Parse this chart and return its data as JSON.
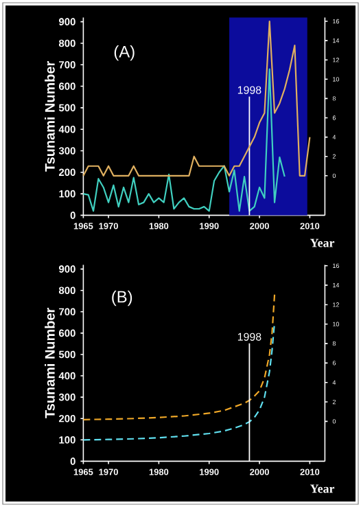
{
  "chart_data": [
    {
      "type": "line",
      "xlabel": "Year",
      "ylabel": "Tsunami Number",
      "xlim": [
        1965,
        2013
      ],
      "xticks": [
        1965,
        1970,
        1980,
        1990,
        2000,
        2010
      ],
      "ylim": [
        0,
        920
      ],
      "yticks": [
        0,
        100,
        200,
        300,
        400,
        500,
        600,
        700,
        800,
        900
      ],
      "y2lim": [
        -4.1,
        16.4
      ],
      "y2ticks": [
        0,
        2,
        4,
        6,
        8,
        10,
        12,
        14,
        16
      ],
      "annotations": [
        "(A)"
      ],
      "bands": [
        {
          "axis": "x",
          "from": 1994,
          "to": 2009.5,
          "color": "#0c0c9c"
        }
      ],
      "ref_lines": [
        {
          "axis": "x",
          "value": 1998,
          "label": "1998",
          "color": "#ffffff"
        }
      ],
      "series": [
        {
          "color": "#40d0c0",
          "x": [
            1965,
            1966,
            1967,
            1968,
            1969,
            1970,
            1971,
            1972,
            1973,
            1974,
            1975,
            1976,
            1977,
            1978,
            1979,
            1980,
            1981,
            1982,
            1983,
            1984,
            1985,
            1986,
            1987,
            1988,
            1989,
            1990,
            1991,
            1992,
            1993,
            1994,
            1995,
            1996,
            1997,
            1998,
            1999,
            2000,
            2001,
            2002,
            2003,
            2004,
            2005
          ],
          "values": [
            100,
            95,
            20,
            170,
            130,
            60,
            140,
            40,
            130,
            60,
            175,
            50,
            60,
            100,
            60,
            80,
            60,
            190,
            30,
            60,
            80,
            40,
            30,
            30,
            40,
            20,
            160,
            200,
            230,
            110,
            210,
            20,
            180,
            20,
            40,
            130,
            80,
            680,
            60,
            270,
            180
          ]
        },
        {
          "color": "#e0b060",
          "axis": "y2",
          "x": [
            1965,
            1966,
            1967,
            1968,
            1969,
            1970,
            1971,
            1972,
            1973,
            1974,
            1975,
            1976,
            1977,
            1978,
            1979,
            1980,
            1981,
            1982,
            1983,
            1984,
            1985,
            1986,
            1987,
            1988,
            1989,
            1990,
            1991,
            1992,
            1993,
            1994,
            1995,
            1996,
            1997,
            1998,
            1999,
            2000,
            2001,
            2002,
            2003,
            2004,
            2005,
            2006,
            2007,
            2008,
            2009,
            2010
          ],
          "values": [
            0,
            1,
            1,
            1,
            0,
            1,
            0,
            0,
            0,
            0,
            1,
            0,
            0,
            0,
            0,
            0,
            0,
            0,
            0,
            0,
            0,
            0,
            2,
            1,
            1,
            1,
            1,
            1,
            1,
            0,
            1,
            1,
            2,
            3,
            4,
            5.5,
            6.5,
            16,
            6.5,
            7.5,
            9,
            11,
            13.5,
            0,
            0,
            4
          ]
        }
      ]
    },
    {
      "type": "line",
      "xlabel": "Year",
      "ylabel": "Tsunami Number",
      "line_style": "dashed",
      "xlim": [
        1965,
        2013
      ],
      "xticks": [
        1965,
        1970,
        1980,
        1990,
        2000,
        2010
      ],
      "ylim": [
        0,
        920
      ],
      "yticks": [
        0,
        100,
        200,
        300,
        400,
        500,
        600,
        700,
        800,
        900
      ],
      "y2lim": [
        -4.1,
        16.1
      ],
      "y2ticks": [
        0,
        2,
        4,
        6,
        8,
        10,
        12,
        14,
        16
      ],
      "annotations": [
        "(B)"
      ],
      "ref_lines": [
        {
          "axis": "x",
          "value": 1998,
          "label": "1998",
          "color": "#ffffff"
        }
      ],
      "series": [
        {
          "color": "#f0a828",
          "x": [
            1965,
            1970,
            1975,
            1980,
            1985,
            1990,
            1993,
            1995,
            1997,
            1998,
            1999,
            2000,
            2001,
            2002,
            2002.5,
            2003
          ],
          "values": [
            195,
            197,
            200,
            205,
            212,
            225,
            238,
            255,
            272,
            285,
            305,
            330,
            390,
            500,
            600,
            780
          ]
        },
        {
          "color": "#60e0f0",
          "x": [
            1965,
            1970,
            1975,
            1980,
            1985,
            1990,
            1993,
            1995,
            1997,
            1998,
            1999,
            2000,
            2001,
            2002,
            2002.5,
            2003
          ],
          "values": [
            100,
            102,
            105,
            110,
            118,
            130,
            142,
            155,
            172,
            185,
            205,
            240,
            300,
            420,
            520,
            650
          ]
        }
      ]
    }
  ]
}
